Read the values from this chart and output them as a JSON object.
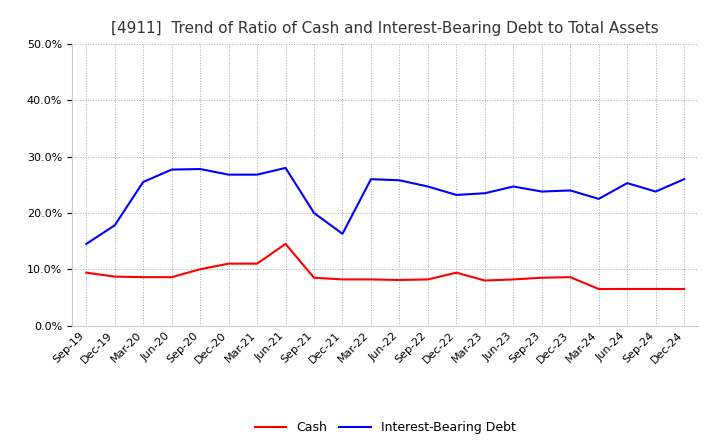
{
  "title": "[4911]  Trend of Ratio of Cash and Interest-Bearing Debt to Total Assets",
  "x_labels": [
    "Sep-19",
    "Dec-19",
    "Mar-20",
    "Jun-20",
    "Sep-20",
    "Dec-20",
    "Mar-21",
    "Jun-21",
    "Sep-21",
    "Dec-21",
    "Mar-22",
    "Jun-22",
    "Sep-22",
    "Dec-22",
    "Mar-23",
    "Jun-23",
    "Sep-23",
    "Dec-23",
    "Mar-24",
    "Jun-24",
    "Sep-24",
    "Dec-24"
  ],
  "cash": [
    0.094,
    0.087,
    0.086,
    0.086,
    0.1,
    0.11,
    0.11,
    0.145,
    0.085,
    0.082,
    0.082,
    0.081,
    0.082,
    0.094,
    0.08,
    0.082,
    0.085,
    0.086,
    0.065,
    0.065,
    0.065,
    0.065
  ],
  "interest_bearing_debt": [
    0.145,
    0.178,
    0.255,
    0.277,
    0.278,
    0.268,
    0.268,
    0.28,
    0.2,
    0.163,
    0.26,
    0.258,
    0.247,
    0.232,
    0.235,
    0.247,
    0.238,
    0.24,
    0.225,
    0.253,
    0.238,
    0.26
  ],
  "cash_color": "#ff0000",
  "debt_color": "#0000ff",
  "background_color": "#ffffff",
  "grid_color": "#aaaaaa",
  "ylim": [
    0.0,
    0.5
  ],
  "yticks": [
    0.0,
    0.1,
    0.2,
    0.3,
    0.4,
    0.5
  ],
  "legend_cash": "Cash",
  "legend_debt": "Interest-Bearing Debt",
  "title_fontsize": 11,
  "tick_fontsize": 8,
  "legend_fontsize": 9
}
